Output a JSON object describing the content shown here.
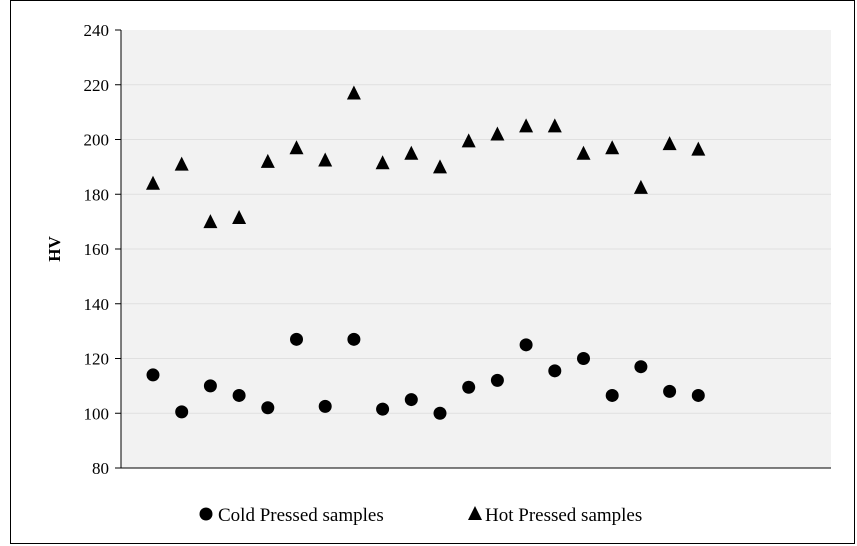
{
  "chart_data": {
    "type": "scatter",
    "title": "",
    "xlabel": "",
    "ylabel": "HV",
    "ylim": [
      80,
      240
    ],
    "yticks": [
      80,
      100,
      120,
      140,
      160,
      180,
      200,
      220,
      240
    ],
    "grid": true,
    "legend_position": "bottom",
    "x": [
      1,
      2,
      3,
      4,
      5,
      6,
      7,
      8,
      9,
      10,
      11,
      12,
      13,
      14,
      15,
      16,
      17,
      18,
      19,
      20
    ],
    "series": [
      {
        "name": "Cold Pressed samples",
        "marker": "circle",
        "color": "#000000",
        "values": [
          114,
          100.5,
          110,
          106.5,
          102,
          127,
          102.5,
          127,
          101.5,
          105,
          100,
          109.5,
          112,
          125,
          115.5,
          120,
          106.5,
          117,
          108,
          106.5
        ]
      },
      {
        "name": "Hot Pressed samples",
        "marker": "triangle",
        "color": "#000000",
        "values": [
          184,
          191,
          170,
          171.5,
          192,
          197,
          192.5,
          217,
          191.5,
          195,
          190,
          199.5,
          202,
          205,
          205,
          195,
          197,
          182.5,
          198.5,
          196.5
        ]
      }
    ]
  }
}
